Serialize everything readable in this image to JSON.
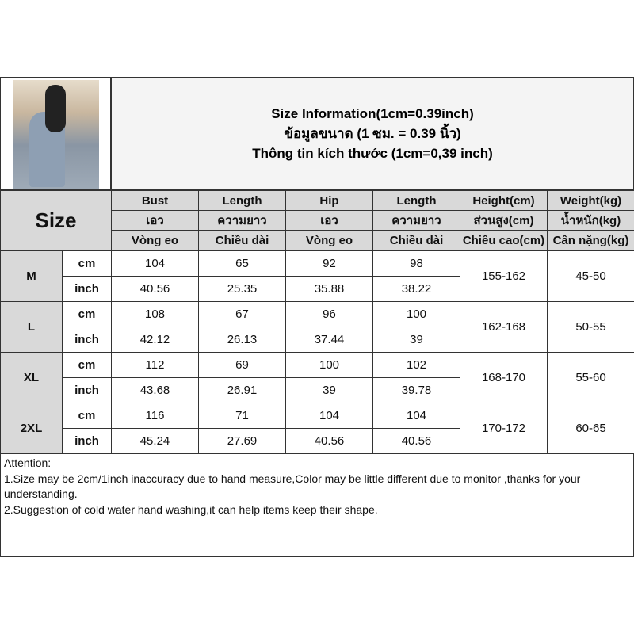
{
  "title": {
    "line1": "Size Information(1cm=0.39inch)",
    "line2": "ข้อมูลขนาด (1 ซม. = 0.39 นิ้ว)",
    "line3": "Thông tin kích thước (1cm=0,39 inch)"
  },
  "size_label": "Size",
  "headers": [
    [
      "Bust",
      "เอว",
      "Vòng eo"
    ],
    [
      "Length",
      "ความยาว",
      "Chiều dài"
    ],
    [
      "Hip",
      "เอว",
      "Vòng eo"
    ],
    [
      "Length",
      "ความยาว",
      "Chiều dài"
    ],
    [
      "Height(cm)",
      "ส่วนสูง(cm)",
      "Chiều cao(cm)"
    ],
    [
      "Weight(kg)",
      "น้ำหนัก(kg)",
      "Cân nặng(kg)"
    ]
  ],
  "rows": [
    {
      "size": "M",
      "cm_label": "cm",
      "inch_label": "inch",
      "cm": [
        "104",
        "65",
        "92",
        "98"
      ],
      "inch": [
        "40.56",
        "25.35",
        "35.88",
        "38.22"
      ],
      "height": "155-162",
      "weight": "45-50"
    },
    {
      "size": "L",
      "cm_label": "cm",
      "inch_label": "inch",
      "cm": [
        "108",
        "67",
        "96",
        "100"
      ],
      "inch": [
        "42.12",
        "26.13",
        "37.44",
        "39"
      ],
      "height": "162-168",
      "weight": "50-55"
    },
    {
      "size": "XL",
      "cm_label": "cm",
      "inch_label": "inch",
      "cm": [
        "112",
        "69",
        "100",
        "102"
      ],
      "inch": [
        "43.68",
        "26.91",
        "39",
        "39.78"
      ],
      "height": "168-170",
      "weight": "55-60"
    },
    {
      "size": "2XL",
      "cm_label": "cm",
      "inch_label": "inch",
      "cm": [
        "116",
        "71",
        "104",
        "104"
      ],
      "inch": [
        "45.24",
        "27.69",
        "40.56",
        "40.56"
      ],
      "height": "170-172",
      "weight": "60-65"
    }
  ],
  "attention": {
    "heading": "Attention:",
    "notes": [
      "1.Size may be 2cm/1inch inaccuracy due to hand measure,Color may be little different due to monitor ,thanks for your understanding.",
      "2.Suggestion of cold water hand washing,it can help items keep their shape."
    ]
  }
}
